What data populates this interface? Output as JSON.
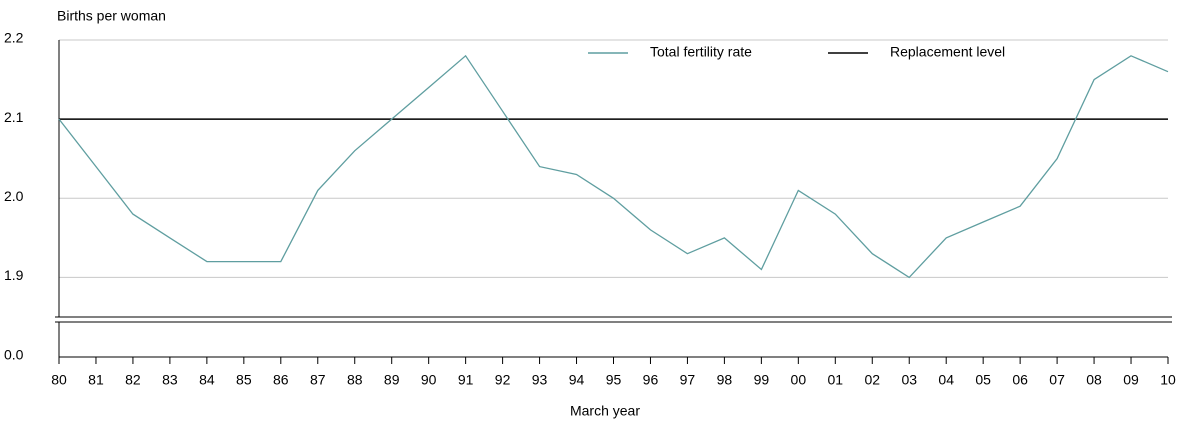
{
  "chart_data": {
    "type": "line",
    "y_label": "Births per woman",
    "x_label": "March year",
    "categories": [
      "80",
      "81",
      "82",
      "83",
      "84",
      "85",
      "86",
      "87",
      "88",
      "89",
      "90",
      "91",
      "92",
      "93",
      "94",
      "95",
      "96",
      "97",
      "98",
      "99",
      "00",
      "01",
      "02",
      "03",
      "04",
      "05",
      "06",
      "07",
      "08",
      "09",
      "10"
    ],
    "series": [
      {
        "name": "Total fertility rate",
        "color": "#5f9ea0",
        "values": [
          2.1,
          2.04,
          1.98,
          1.95,
          1.92,
          1.92,
          1.92,
          2.01,
          2.06,
          2.1,
          2.14,
          2.18,
          2.11,
          2.04,
          2.03,
          2.0,
          1.96,
          1.93,
          1.95,
          1.91,
          2.01,
          1.98,
          1.93,
          1.9,
          1.95,
          1.97,
          1.99,
          2.05,
          2.15,
          2.18,
          2.16
        ]
      },
      {
        "name": "Replacement level",
        "color": "#000000",
        "values": [
          2.1,
          2.1,
          2.1,
          2.1,
          2.1,
          2.1,
          2.1,
          2.1,
          2.1,
          2.1,
          2.1,
          2.1,
          2.1,
          2.1,
          2.1,
          2.1,
          2.1,
          2.1,
          2.1,
          2.1,
          2.1,
          2.1,
          2.1,
          2.1,
          2.1,
          2.1,
          2.1,
          2.1,
          2.1,
          2.1,
          2.1
        ]
      }
    ],
    "ylim": [
      0,
      2.2
    ],
    "y_break": [
      0,
      1.85
    ],
    "yticks": [
      {
        "value": 0,
        "label": "0.0"
      },
      1.9,
      {
        "value": 2,
        "label": "2.0"
      },
      2.1,
      2.2
    ],
    "grid": true,
    "legend": "top-right"
  }
}
